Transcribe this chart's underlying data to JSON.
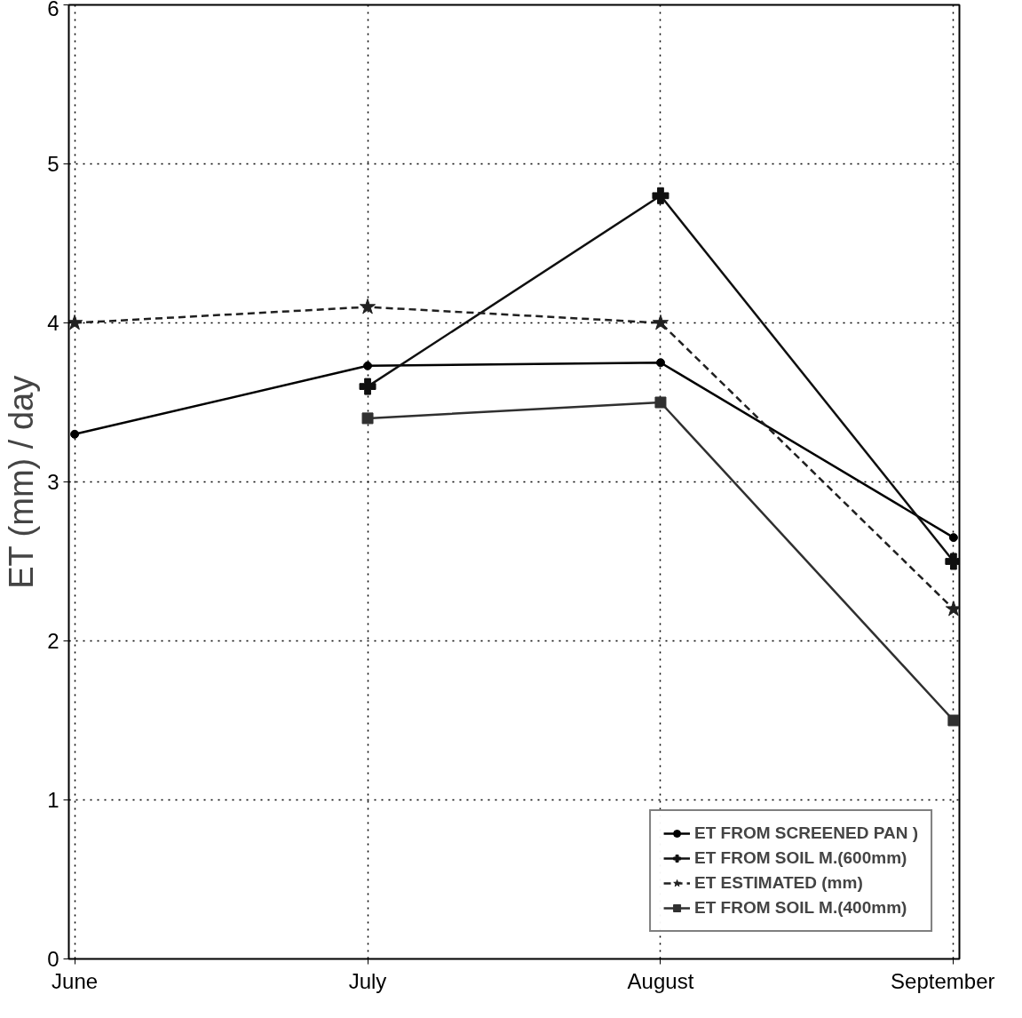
{
  "chart_data": {
    "type": "line",
    "ylabel": "ET (mm) / day",
    "categories": [
      "June",
      "July",
      "August",
      "September"
    ],
    "ylim": [
      0,
      6
    ],
    "yticks": [
      0,
      1,
      2,
      3,
      4,
      5,
      6
    ],
    "grid": true,
    "legend": "bottom right",
    "series": [
      {
        "name": "ET FROM SCREENED PAN )",
        "color": "#000000",
        "marker": "circle",
        "line_style": "solid",
        "values": [
          3.3,
          3.73,
          3.75,
          2.65
        ]
      },
      {
        "name": "ET FROM SOIL M.(600mm)",
        "color": "#101010",
        "marker": "cross",
        "line_style": "solid",
        "values": [
          null,
          3.6,
          4.8,
          2.5
        ]
      },
      {
        "name": "ET ESTIMATED (mm)",
        "color": "#202020",
        "marker": "star",
        "line_style": "dashed",
        "values": [
          4.0,
          4.1,
          4.0,
          2.2
        ]
      },
      {
        "name": "ET FROM SOIL M.(400mm)",
        "color": "#303030",
        "marker": "square",
        "line_style": "solid",
        "values": [
          null,
          3.4,
          3.5,
          1.5
        ]
      }
    ]
  }
}
